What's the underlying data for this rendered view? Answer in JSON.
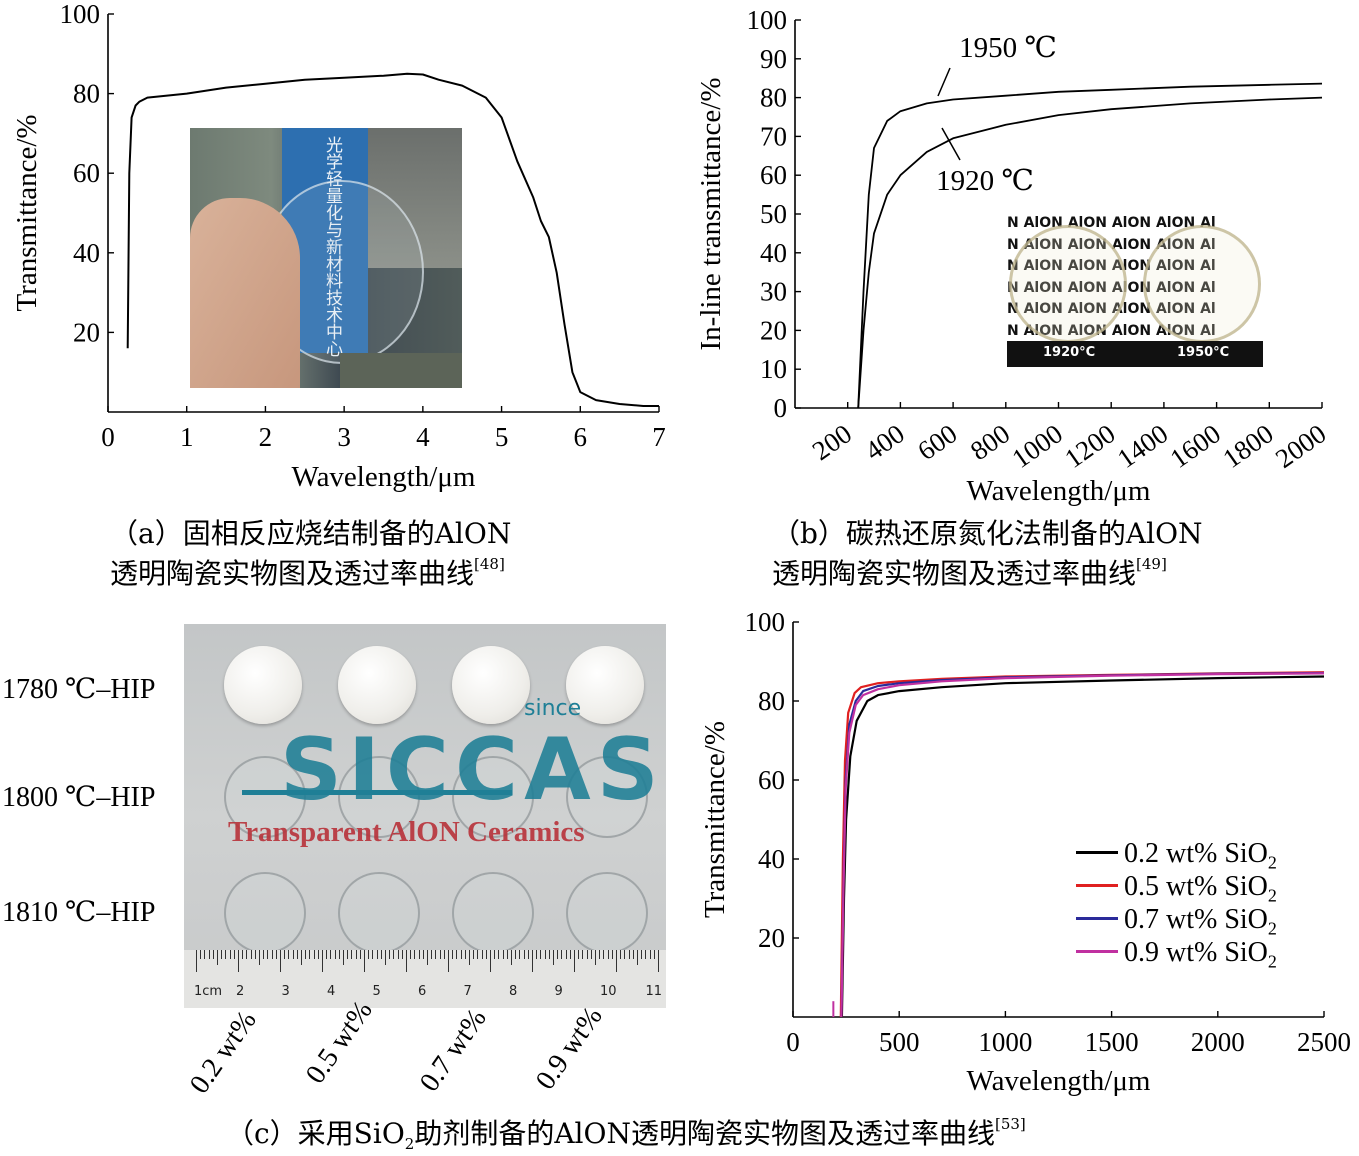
{
  "chart_data": [
    {
      "panel": "a",
      "type": "line",
      "xlabel": "Wavelength/μm",
      "ylabel": "Transmittance/%",
      "xlim": [
        0,
        7
      ],
      "ylim": [
        0,
        100
      ],
      "xticks": [
        "0",
        "1",
        "2",
        "3",
        "4",
        "5",
        "6",
        "7"
      ],
      "yticks": [
        "20",
        "40",
        "60",
        "80",
        "100"
      ],
      "series": [
        {
          "color": "#000000",
          "x": [
            0.25,
            0.27,
            0.3,
            0.35,
            0.4,
            0.5,
            1,
            1.5,
            2,
            2.5,
            3,
            3.5,
            3.8,
            4,
            4.2,
            4.5,
            4.8,
            5,
            5.2,
            5.4,
            5.5,
            5.6,
            5.7,
            5.8,
            5.9,
            6.0,
            6.2,
            6.5,
            6.8,
            7.0
          ],
          "y": [
            16,
            60,
            74,
            77,
            78,
            79,
            80,
            81.5,
            82.5,
            83.5,
            84,
            84.5,
            85,
            84.8,
            83.5,
            82,
            79,
            74,
            63,
            54,
            48,
            44,
            35,
            22,
            10,
            5,
            3,
            2,
            1.5,
            1.5
          ]
        }
      ],
      "inset": "photo of a transparent AlON disc held in front of a sign",
      "inset_text": [
        "光学轻量化与新材料技术中心"
      ]
    },
    {
      "panel": "b",
      "type": "line",
      "xlabel": "Wavelength/μm",
      "ylabel": "In-line transmittance/%",
      "xlim": [
        0,
        2000
      ],
      "ylim": [
        0,
        100
      ],
      "xticks": [
        "200",
        "400",
        "600",
        "800",
        "1000",
        "1200",
        "1400",
        "1600",
        "1800",
        "2000"
      ],
      "yticks": [
        "0",
        "10",
        "20",
        "30",
        "40",
        "50",
        "60",
        "70",
        "80",
        "90",
        "100"
      ],
      "series": [
        {
          "name": "1950 ℃",
          "color": "#000000",
          "x": [
            240,
            260,
            280,
            300,
            350,
            400,
            500,
            600,
            800,
            1000,
            1200,
            1500,
            1800,
            2000
          ],
          "y": [
            0,
            30,
            55,
            67,
            74,
            76.5,
            78.5,
            79.5,
            80.5,
            81.5,
            82,
            82.8,
            83.3,
            83.6
          ]
        },
        {
          "name": "1920 ℃",
          "color": "#000000",
          "x": [
            240,
            260,
            280,
            300,
            350,
            400,
            500,
            600,
            800,
            1000,
            1200,
            1500,
            1800,
            2000
          ],
          "y": [
            0,
            20,
            35,
            45,
            55,
            60,
            66,
            69.5,
            73,
            75.5,
            77,
            78.5,
            79.5,
            80
          ]
        }
      ],
      "annotations": [
        "1950 ℃",
        "1920 ℃"
      ],
      "inset_text": [
        "1920°C",
        "1950°C",
        "N AlON AlON AlON AlON Al"
      ]
    },
    {
      "panel": "c",
      "type": "line",
      "xlabel": "Wavelength/μm",
      "ylabel": "Transmittance/%",
      "xlim": [
        0,
        2500
      ],
      "ylim": [
        0,
        100
      ],
      "xticks": [
        "0",
        "500",
        "1000",
        "1500",
        "2000",
        "2500"
      ],
      "yticks": [
        "20",
        "40",
        "60",
        "80",
        "100"
      ],
      "legend_position": "bottom-right",
      "series": [
        {
          "name": "0.2 wt% SiO",
          "sub": "2",
          "color": "#000000",
          "x": [
            230,
            240,
            250,
            270,
            300,
            350,
            400,
            500,
            700,
            1000,
            1500,
            2000,
            2500
          ],
          "y": [
            0,
            30,
            50,
            66,
            75,
            80,
            81.5,
            82.5,
            83.5,
            84.5,
            85.2,
            85.8,
            86.2
          ]
        },
        {
          "name": "0.5 wt% SiO",
          "sub": "2",
          "color": "#e02020",
          "x": [
            225,
            235,
            245,
            260,
            290,
            320,
            400,
            500,
            700,
            1000,
            1500,
            2000,
            2500
          ],
          "y": [
            0,
            40,
            65,
            77,
            82,
            83.5,
            84.5,
            85,
            85.6,
            86.2,
            86.6,
            87,
            87.3
          ]
        },
        {
          "name": "0.7 wt% SiO",
          "sub": "2",
          "color": "#2a2a9a",
          "x": [
            228,
            238,
            248,
            265,
            295,
            330,
            400,
            500,
            700,
            1000,
            1500,
            2000,
            2500
          ],
          "y": [
            0,
            36,
            60,
            74,
            80,
            82.5,
            83.8,
            84.5,
            85.3,
            86,
            86.5,
            86.9,
            87.1
          ]
        },
        {
          "name": "0.9 wt% SiO",
          "sub": "2",
          "color": "#c030a0",
          "x": [
            228,
            238,
            248,
            265,
            295,
            330,
            400,
            500,
            700,
            1000,
            1500,
            2000,
            2500
          ],
          "y": [
            0,
            34,
            58,
            72,
            79,
            81.5,
            83,
            84,
            85,
            85.8,
            86.4,
            86.8,
            87
          ]
        }
      ]
    }
  ],
  "captions": {
    "a_line1": "（a）固相反应烧结制备的AlON",
    "a_line2": "透明陶瓷实物图及透过率曲线",
    "a_ref": "[48]",
    "b_line1": "（b）碳热还原氮化法制备的AlON",
    "b_line2": "透明陶瓷实物图及透过率曲线",
    "b_ref": "[49]",
    "c_pre": "（c）采用SiO",
    "c_sub": "2",
    "c_post": "助剂制备的AlON透明陶瓷实物图及透过率曲线",
    "c_ref": "[53]"
  },
  "photo_c": {
    "rows": [
      "1780 ℃–HIP",
      "1800 ℃–HIP",
      "1810 ℃–HIP"
    ],
    "cols": [
      "0.2 wt%",
      "0.5 wt%",
      "0.7 wt%",
      "0.9 wt%"
    ],
    "logo": "SICCAS",
    "logo_small": "since",
    "banner": "Transparent AlON Ceramics",
    "ruler_unit": "1cm",
    "ruler_numbers": [
      "2",
      "3",
      "4",
      "5",
      "6",
      "7",
      "8",
      "9",
      "10",
      "11"
    ]
  },
  "colors": {
    "axis": "#000000",
    "photo_a_bg": "#3f4a52",
    "photo_a_sign": "#2d6fb0",
    "photo_c_bg": "#c9cbcc",
    "logo_teal": "#1f7f96",
    "banner_red": "#b8323a"
  }
}
